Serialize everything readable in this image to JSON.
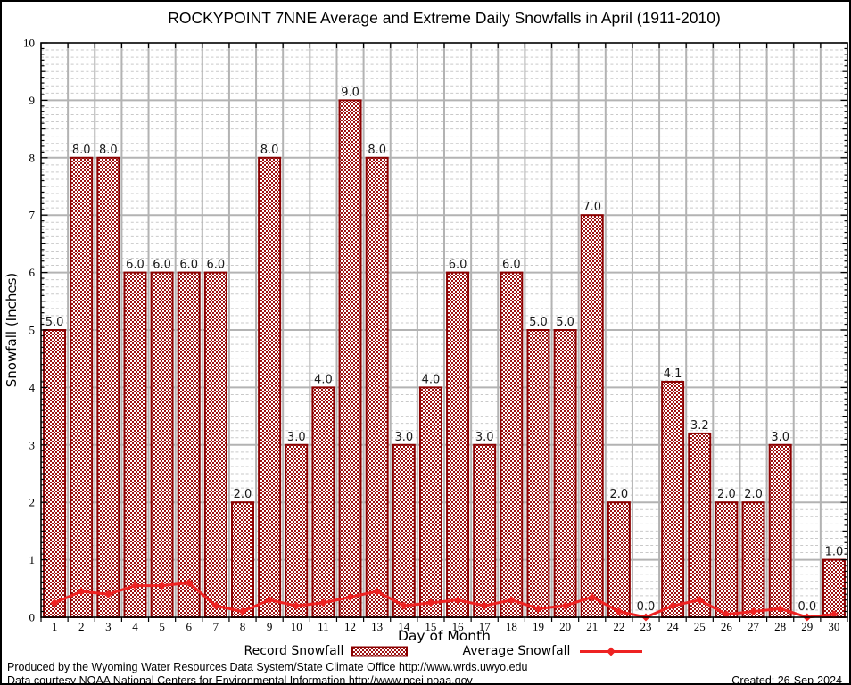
{
  "chart": {
    "title": "ROCKYPOINT 7NNE Average and Extreme Daily Snowfalls in April (1911-2010)"
  },
  "chart_data": {
    "type": "bar",
    "title": "ROCKYPOINT 7NNE Average and Extreme Daily Snowfalls in April (1911-2010)",
    "xlabel": "Day of Month",
    "ylabel": "Snowfall (Inches)",
    "ylim": [
      0,
      10
    ],
    "yticks": [
      "0",
      "1",
      "2",
      "3",
      "4",
      "5",
      "6",
      "7",
      "8",
      "9",
      "10"
    ],
    "grid": true,
    "legend_position": "bottom",
    "categories": [
      1,
      2,
      3,
      4,
      5,
      6,
      7,
      8,
      9,
      10,
      11,
      12,
      13,
      14,
      15,
      16,
      17,
      18,
      19,
      20,
      21,
      22,
      23,
      24,
      25,
      26,
      27,
      28,
      29,
      30
    ],
    "series": [
      {
        "name": "Record Snowfall",
        "type": "bar",
        "values": [
          5.0,
          8.0,
          8.0,
          6.0,
          6.0,
          6.0,
          6.0,
          2.0,
          8.0,
          3.0,
          4.0,
          9.0,
          8.0,
          3.0,
          4.0,
          6.0,
          3.0,
          6.0,
          5.0,
          5.0,
          7.0,
          2.0,
          0.0,
          4.1,
          3.2,
          2.0,
          2.0,
          3.0,
          0.0,
          1.0
        ]
      },
      {
        "name": "Average Snowfall",
        "type": "line",
        "values": [
          0.25,
          0.45,
          0.4,
          0.55,
          0.55,
          0.6,
          0.2,
          0.1,
          0.3,
          0.2,
          0.25,
          0.35,
          0.45,
          0.2,
          0.25,
          0.3,
          0.2,
          0.3,
          0.15,
          0.2,
          0.35,
          0.1,
          0.0,
          0.2,
          0.3,
          0.05,
          0.1,
          0.15,
          0.0,
          0.05
        ]
      }
    ],
    "colors": {
      "bar_fill": "#9e1212",
      "bar_edge": "#8b0000",
      "line": "#ee2222",
      "grid_major": "#b3b3b3",
      "grid_minor": "#c9c9c9",
      "frame": "#000000"
    }
  },
  "footer": {
    "line1": "Produced by the Wyoming Water Resources Data System/State Climate Office http://www.wrds.uwyo.edu",
    "line2": "Data courtesy NOAA National Centers for Environmental Information http://www.ncei.noaa.gov",
    "created": "Created: 26-Sep-2024"
  }
}
